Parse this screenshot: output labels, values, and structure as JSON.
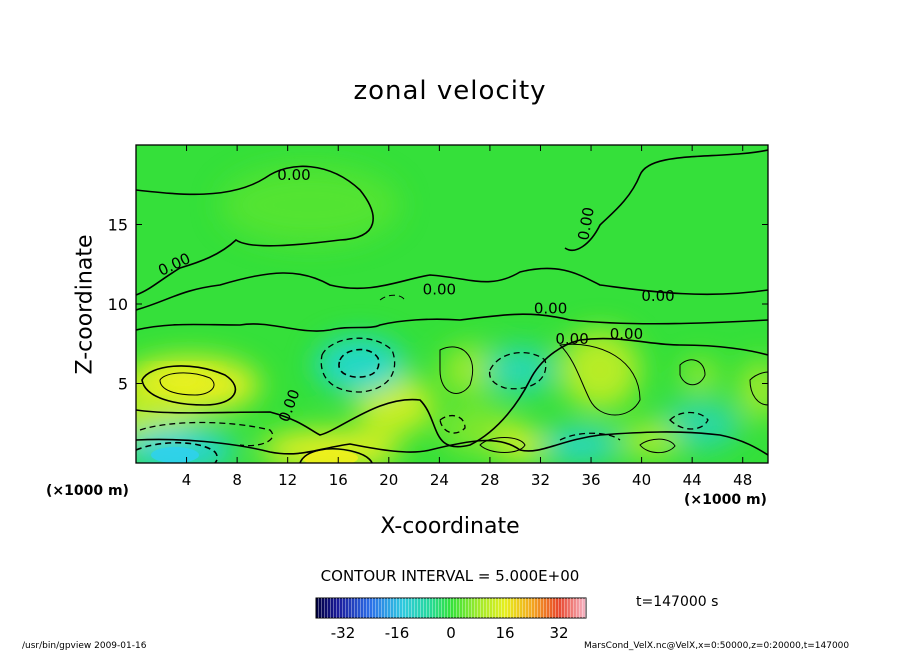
{
  "chart_data": {
    "type": "contour",
    "title": "zonal velocity",
    "xlabel": "X-coordinate",
    "ylabel": "Z-coordinate",
    "x_unit_label": "(×1000 m)",
    "xlim": [
      0,
      50
    ],
    "ylim": [
      0,
      20
    ],
    "x_ticks": [
      4,
      8,
      12,
      16,
      20,
      24,
      28,
      32,
      36,
      40,
      44,
      48
    ],
    "y_ticks": [
      5,
      10,
      15
    ],
    "contour_interval_text": "CONTOUR INTERVAL = 5.000E+00",
    "zero_contour_label": "0.00",
    "zero_label_positions": [
      {
        "x": 12.5,
        "y": 17.8
      },
      {
        "x": 3.2,
        "y": 12.2
      },
      {
        "x": 24.0,
        "y": 10.6
      },
      {
        "x": 41.3,
        "y": 10.2
      },
      {
        "x": 32.8,
        "y": 9.4
      },
      {
        "x": 34.5,
        "y": 7.5
      },
      {
        "x": 38.8,
        "y": 7.8
      },
      {
        "x": 36.0,
        "y": 15.0
      },
      {
        "x": 12.5,
        "y": 3.5
      }
    ],
    "colorbar": {
      "min": -40,
      "max": 40,
      "tick_labels": [
        "-32",
        "-16",
        "0",
        "16",
        "32"
      ],
      "tick_values": [
        -32,
        -16,
        0,
        16,
        32
      ]
    },
    "time_label": "t=147000 s",
    "features": [
      {
        "kind": "max",
        "x": 4.5,
        "y": 5.2,
        "value": 20
      },
      {
        "kind": "max",
        "x": 16.0,
        "y": 0.3,
        "value": 20
      },
      {
        "kind": "min",
        "x": 17.5,
        "y": 6.5,
        "value": -10
      },
      {
        "kind": "min",
        "x": 3.5,
        "y": 0.8,
        "value": -15
      }
    ],
    "colors": {
      "background_field": "#33e23a",
      "positive_yellow": "#e6f01f",
      "negative_cyan": "#27d6c8",
      "strong_negative": "#33b6ff"
    }
  },
  "footer": {
    "left": "/usr/bin/gpview   2009-01-16",
    "right": "MarsCond_VelX.nc@VelX,x=0:50000,z=0:20000,t=147000"
  }
}
